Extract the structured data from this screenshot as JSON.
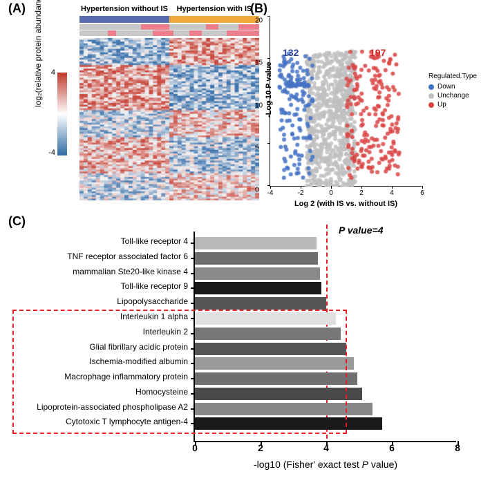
{
  "panelA": {
    "label": "(A)",
    "headers": [
      "Hypertension without IS",
      "Hypertension with IS"
    ],
    "header_colors": [
      "#5a6cb0",
      "#f2a83b"
    ],
    "ylabel": "log₂(relative protein abundance)",
    "colorbar": {
      "max": 4,
      "min": -4,
      "gradient_colors": [
        "#c0392b",
        "#ffffff",
        "#2e6da4"
      ]
    },
    "annotation_colors": {
      "gray": "#c8c8c8",
      "pink": "#ed7e8b"
    },
    "heatmap_colors": {
      "high": "#c94a3f",
      "mid": "#f5f5f5",
      "low": "#3d73ad"
    }
  },
  "panelB": {
    "label": "(B)",
    "ylabel": "-Log 10 P value",
    "xlabel": "Log 2 (with IS vs. without IS)",
    "xlim": [
      -4,
      6
    ],
    "ylim": [
      0,
      20
    ],
    "xtick_step": 2,
    "ytick_step": 5,
    "counts": {
      "down": 132,
      "up": 197
    },
    "count_colors": {
      "down": "#2a3f9e",
      "up": "#d42020"
    },
    "legend_title": "Regulated.Type",
    "legend": [
      {
        "label": "Down",
        "color": "#4472c4"
      },
      {
        "label": "Unchange",
        "color": "#bfbfbf"
      },
      {
        "label": "Up",
        "color": "#d94545"
      }
    ],
    "point_size": 4,
    "point_opacity": 0.85
  },
  "panelC": {
    "label": "(C)",
    "xlabel": "-log10 (Fisher' exact test P value)",
    "xlim": [
      0,
      8
    ],
    "xtick_step": 2,
    "pvalue_threshold": 4,
    "pvalue_text": "P value=4",
    "bar_colors": [
      "#b8b8b8",
      "#6e6e6e",
      "#8a8a8a",
      "#1a1a1a",
      "#555555",
      "#e0e0e0",
      "#777777",
      "#555555",
      "#999999",
      "#707070",
      "#4a4a4a",
      "#888888",
      "#1a1a1a"
    ],
    "bars": [
      {
        "label": "Toll-like receptor 4",
        "value": 3.7
      },
      {
        "label": "TNF receptor associated factor 6",
        "value": 3.75
      },
      {
        "label": "mammalian Ste20-like kinase 4",
        "value": 3.8
      },
      {
        "label": "Toll-like receptor 9",
        "value": 3.85
      },
      {
        "label": "Lipopolysaccharide",
        "value": 4.0
      },
      {
        "label": "Interleukin 1 alpha",
        "value": 4.3
      },
      {
        "label": "Interleukin 2",
        "value": 4.45
      },
      {
        "label": "Glial fibrillary acidic protein",
        "value": 4.6
      },
      {
        "label": "Ischemia-modified albumin",
        "value": 4.85
      },
      {
        "label": "Macrophage inflammatory protein",
        "value": 4.95
      },
      {
        "label": "Homocysteine",
        "value": 5.1
      },
      {
        "label": "Lipoprotein-associated phospholipase A2",
        "value": 5.4
      },
      {
        "label": "Cytotoxic T lymphocyte antigen-4",
        "value": 5.7
      }
    ],
    "dashed_box": {
      "from_bar": 5,
      "to_bar": 12
    }
  }
}
